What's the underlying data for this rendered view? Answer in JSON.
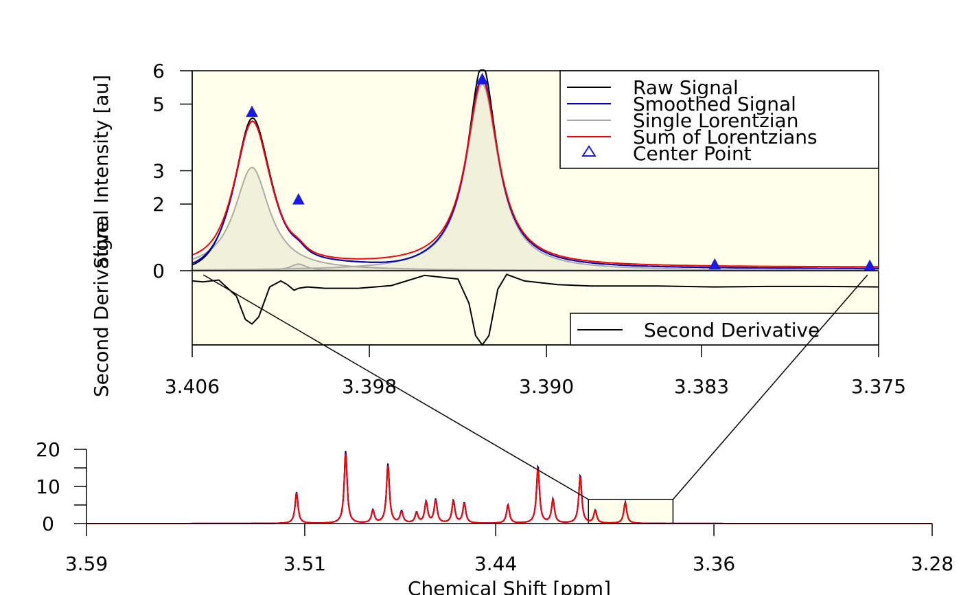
{
  "chart_data": [
    {
      "id": "top",
      "type": "line",
      "xlim": [
        3.406,
        3.375
      ],
      "ylim": [
        0,
        6
      ],
      "background_color": "#ffffec",
      "x_ticks": [
        3.406,
        3.398,
        3.39,
        3.383,
        3.375
      ],
      "x_tick_labels": [
        "3.406",
        "3.398",
        "3.390",
        "3.383",
        "3.375"
      ],
      "y_ticks": [
        0,
        2,
        3,
        5,
        6
      ],
      "y_tick_labels": [
        "0",
        "2",
        "3",
        "5",
        "6"
      ],
      "ylabel": "Signal Intensity [au]",
      "ylabel_lower": "Second Derivative",
      "grid": false,
      "legend_position": "top-right",
      "series": [
        {
          "name": "Raw Signal",
          "color": "#000000"
        },
        {
          "name": "Smoothed Signal",
          "color": "#0000cc"
        },
        {
          "name": "Single Lorentzian",
          "color": "#aaaaaa"
        },
        {
          "name": "Sum of Lorentzians",
          "color": "#ff0000"
        },
        {
          "name": "Center Point",
          "color": "#1a1ae6"
        }
      ],
      "lorentzians": [
        {
          "x0": 3.4033,
          "amp": 3.1,
          "w": 0.00095,
          "offset": 0.0
        },
        {
          "x0": 3.4012,
          "amp": 0.2,
          "w": 0.00045,
          "offset": 0.0
        },
        {
          "x0": 3.3929,
          "amp": 5.6,
          "w": 0.00088,
          "offset": 0.0
        }
      ],
      "center_points": [
        {
          "x": 3.4033,
          "y": 4.75
        },
        {
          "x": 3.4012,
          "y": 2.12
        },
        {
          "x": 3.3929,
          "y": 5.73
        },
        {
          "x": 3.3824,
          "y": 0.17
        },
        {
          "x": 3.3754,
          "y": 0.13
        }
      ],
      "second_derivative": {
        "legend": "Second Derivative",
        "x": [
          3.406,
          3.4055,
          3.4048,
          3.404,
          3.4036,
          3.4033,
          3.403,
          3.4025,
          3.402,
          3.4017,
          3.4014,
          3.4012,
          3.4008,
          3.4,
          3.3985,
          3.397,
          3.3955,
          3.394,
          3.3935,
          3.3932,
          3.3929,
          3.3926,
          3.3922,
          3.3918,
          3.391,
          3.3895,
          3.388,
          3.385,
          3.3824,
          3.38,
          3.3775,
          3.375
        ],
        "y": [
          -0.12,
          -0.14,
          -0.1,
          -0.45,
          -0.95,
          -1.05,
          -0.9,
          -0.25,
          -0.12,
          -0.2,
          -0.32,
          -0.28,
          -0.25,
          -0.28,
          -0.28,
          -0.22,
          0.0,
          -0.08,
          -0.6,
          -1.3,
          -1.5,
          -1.3,
          -0.3,
          0.02,
          -0.12,
          -0.2,
          -0.23,
          -0.23,
          -0.25,
          -0.24,
          -0.24,
          -0.25
        ],
        "ylim": [
          -1.5,
          0.1
        ]
      }
    },
    {
      "id": "bottom",
      "type": "line",
      "xlim": [
        3.59,
        3.28
      ],
      "ylim": [
        0,
        20
      ],
      "x_ticks": [
        3.59,
        3.51,
        3.44,
        3.36,
        3.28
      ],
      "x_tick_labels": [
        "3.59",
        "3.51",
        "3.44",
        "3.36",
        "3.28"
      ],
      "y_ticks": [
        0,
        10,
        20
      ],
      "y_tick_labels": [
        "0",
        "10",
        "20"
      ],
      "xlabel": "Chemical Shift [ppm]",
      "zoom_region": {
        "x": [
          3.406,
          3.375
        ],
        "y": [
          0,
          6.5
        ]
      },
      "peaks": [
        {
          "x": 3.513,
          "amp": 8.5
        },
        {
          "x": 3.495,
          "amp": 19.5
        },
        {
          "x": 3.485,
          "amp": 3.5
        },
        {
          "x": 3.4795,
          "amp": 16.0
        },
        {
          "x": 3.4745,
          "amp": 3.2
        },
        {
          "x": 3.469,
          "amp": 2.8
        },
        {
          "x": 3.4655,
          "amp": 5.8
        },
        {
          "x": 3.462,
          "amp": 6.4
        },
        {
          "x": 3.4555,
          "amp": 6.2
        },
        {
          "x": 3.4515,
          "amp": 5.5
        },
        {
          "x": 3.4355,
          "amp": 5.0
        },
        {
          "x": 3.4245,
          "amp": 15.5
        },
        {
          "x": 3.419,
          "amp": 6.5
        },
        {
          "x": 3.409,
          "amp": 13.0
        },
        {
          "x": 3.4035,
          "amp": 3.5
        },
        {
          "x": 3.3925,
          "amp": 5.8
        }
      ]
    }
  ]
}
